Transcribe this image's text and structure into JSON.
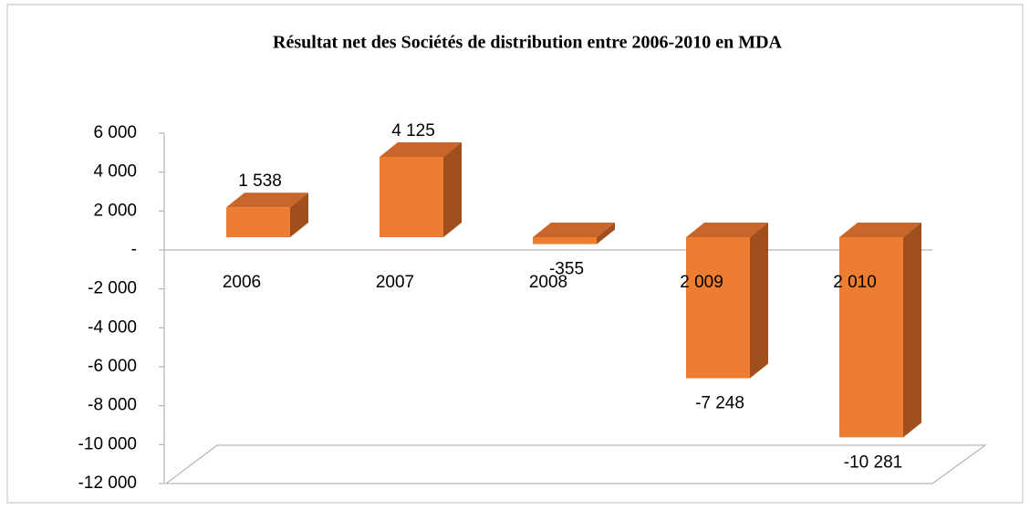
{
  "chart_data": {
    "type": "bar3d",
    "title": "Résultat net des Sociétés de distribution entre 2006-2010 en MDA",
    "categories": [
      "2006",
      "2007",
      "2008",
      "2 009",
      "2 010"
    ],
    "values": [
      1538,
      4125,
      -355,
      -7248,
      -10281
    ],
    "value_labels": [
      "1 538",
      "4 125",
      "-355",
      "-7 248",
      "-10 281"
    ],
    "color": "#ed7d31",
    "ylim": [
      -12000,
      6000
    ],
    "yticks": [
      {
        "value": 6000,
        "label": "6 000"
      },
      {
        "value": 4000,
        "label": "4 000"
      },
      {
        "value": 2000,
        "label": "2 000"
      },
      {
        "value": 0,
        "label": "-"
      },
      {
        "value": -2000,
        "label": "-2 000"
      },
      {
        "value": -4000,
        "label": "-4 000"
      },
      {
        "value": -6000,
        "label": "-6 000"
      },
      {
        "value": -8000,
        "label": "-8 000"
      },
      {
        "value": -10000,
        "label": "-10 000"
      },
      {
        "value": -12000,
        "label": "-12 000"
      }
    ]
  }
}
